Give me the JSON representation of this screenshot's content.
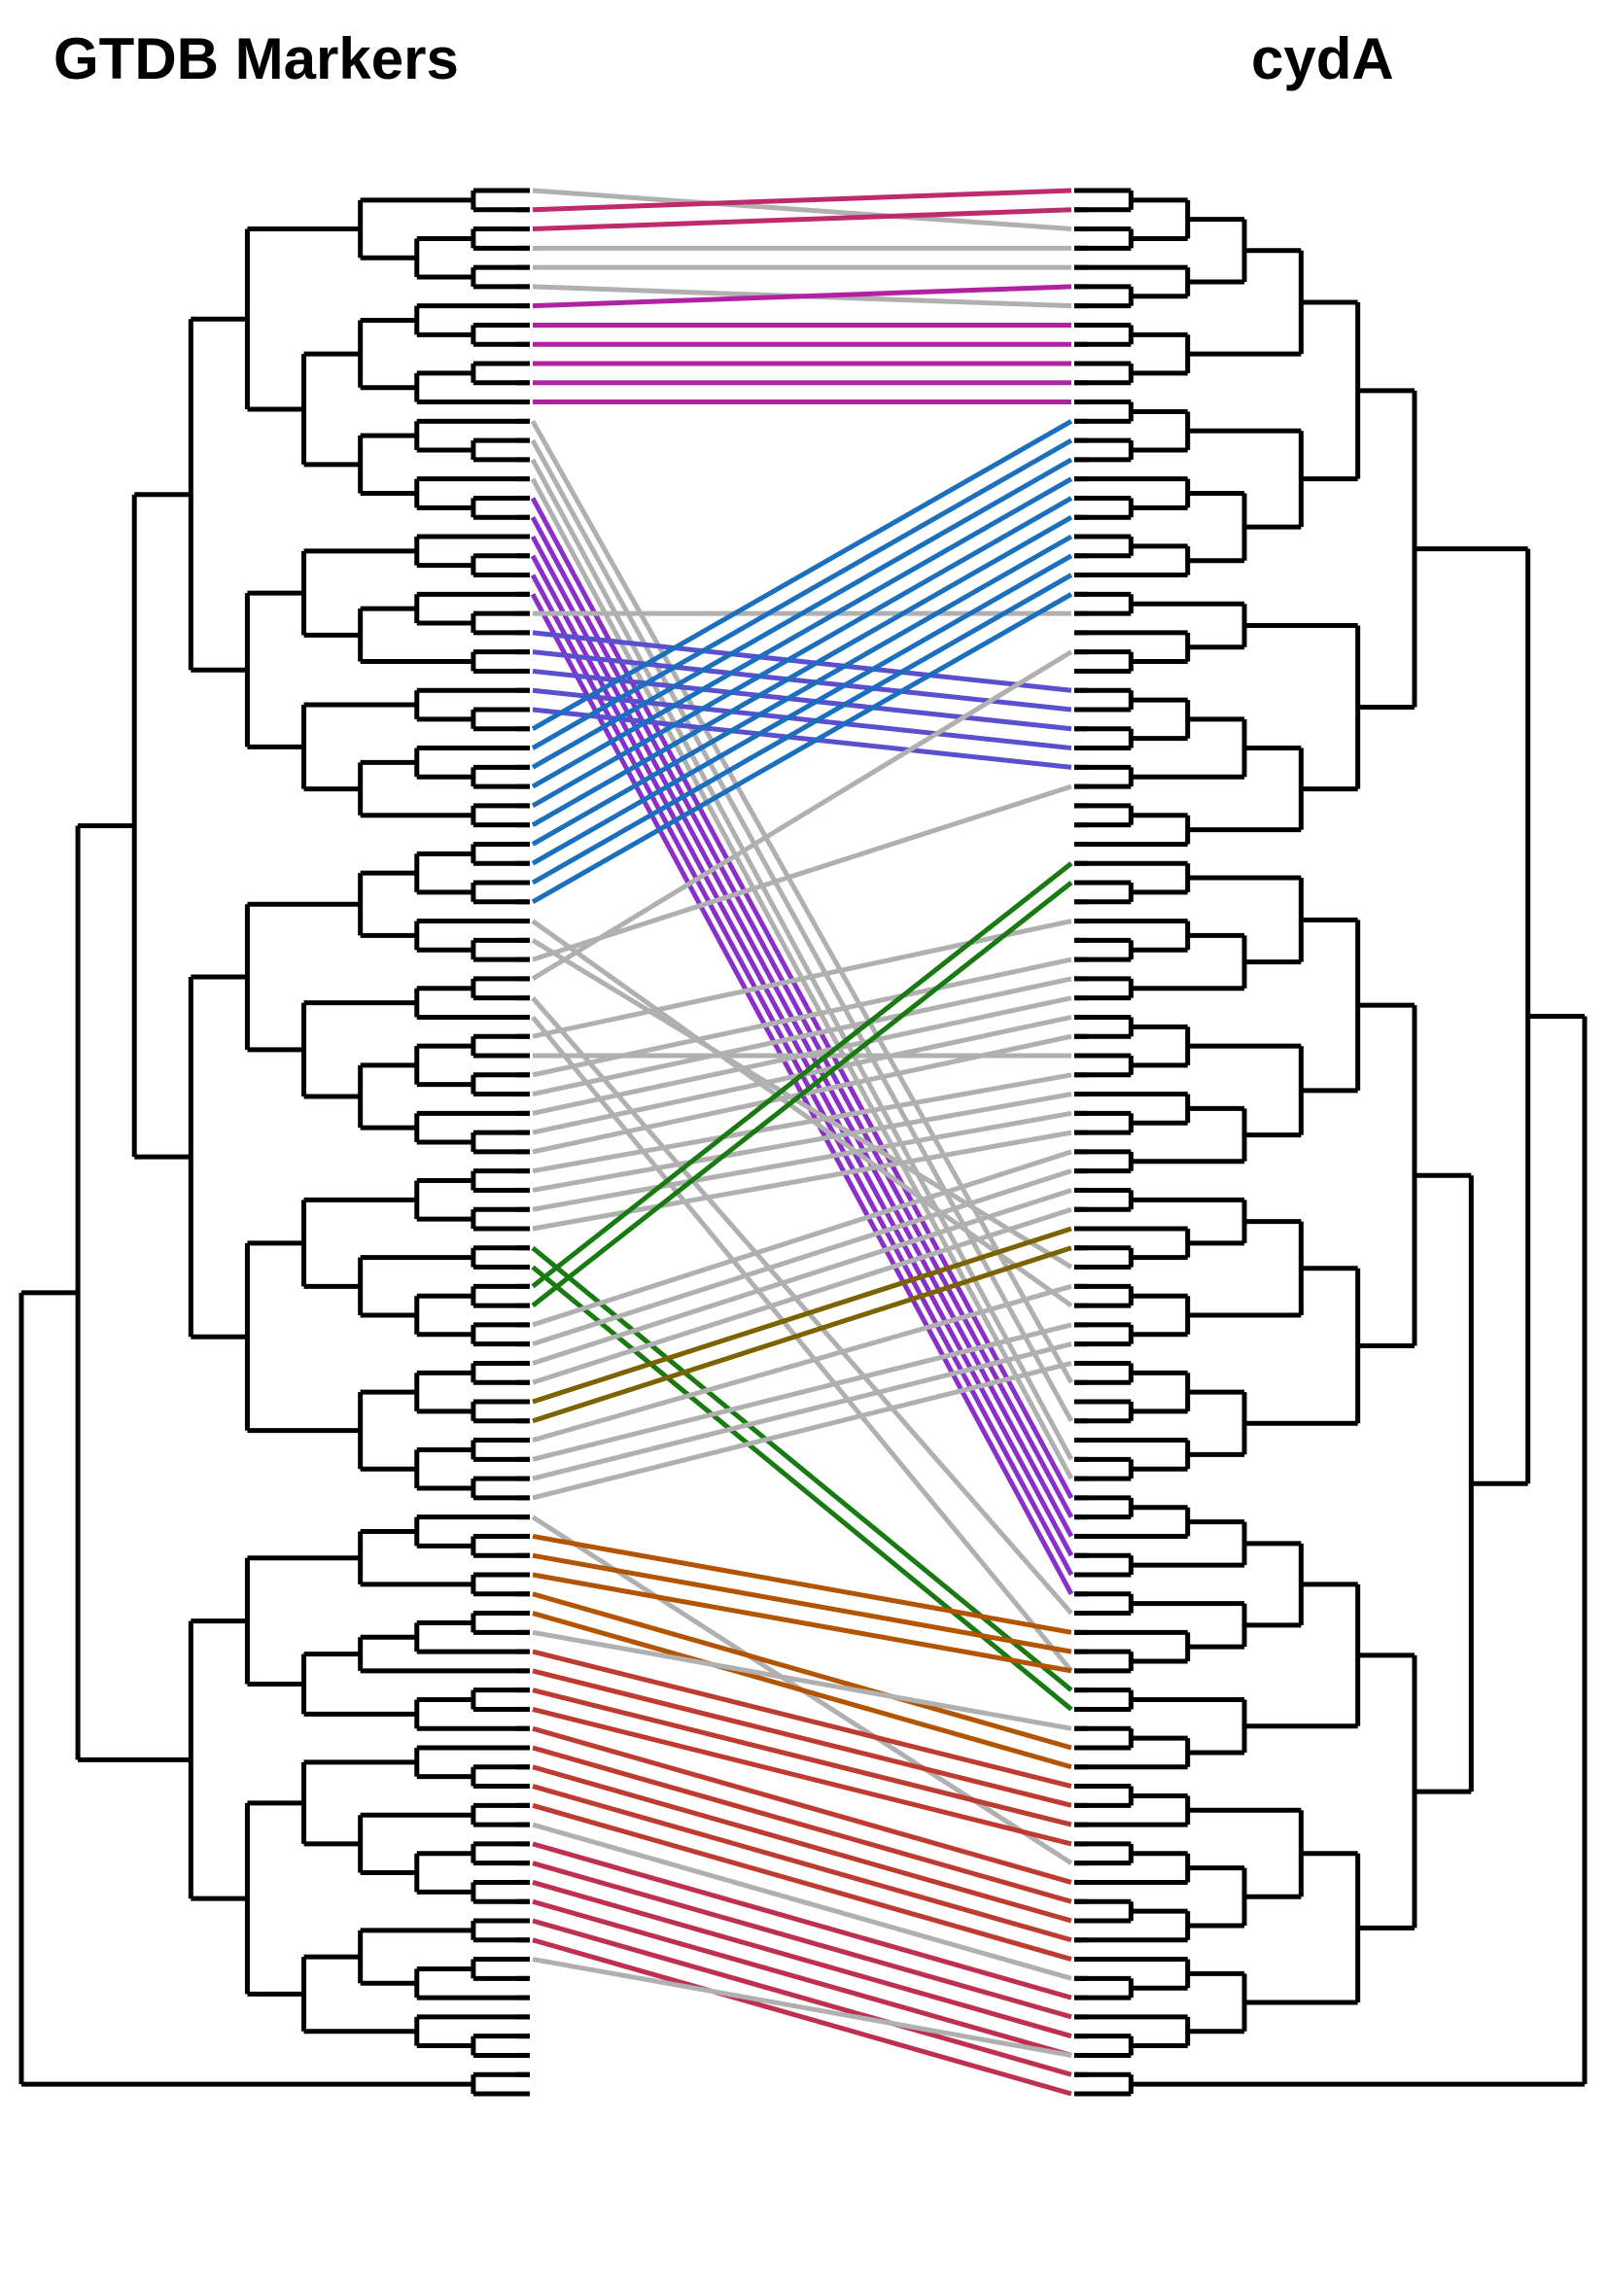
{
  "titles": {
    "left": "GTDB Markers",
    "right": "cydA"
  },
  "colors": {
    "tree": "#000000",
    "unmatched": "#b0b0b0",
    "groups": [
      "#bf2a6e",
      "#b0229f",
      "#8b2fc9",
      "#5a4fcf",
      "#1a6fbf",
      "#1a7a12",
      "#7a6300",
      "#b35400",
      "#bf3a30",
      "#bf3050"
    ]
  },
  "tip_count": 100,
  "connections": [
    [
      0,
      2,
      "#b0b0b0"
    ],
    [
      1,
      0,
      "#bf2a6e"
    ],
    [
      2,
      1,
      "#bf2a6e"
    ],
    [
      3,
      3,
      "#b0b0b0"
    ],
    [
      4,
      4,
      "#b0b0b0"
    ],
    [
      5,
      6,
      "#b0b0b0"
    ],
    [
      6,
      5,
      "#b0229f"
    ],
    [
      7,
      7,
      "#b0229f"
    ],
    [
      8,
      8,
      "#b0229f"
    ],
    [
      9,
      9,
      "#b0229f"
    ],
    [
      10,
      10,
      "#b0229f"
    ],
    [
      11,
      11,
      "#b0229f"
    ],
    [
      12,
      62,
      "#b0b0b0"
    ],
    [
      13,
      64,
      "#b0b0b0"
    ],
    [
      14,
      66,
      "#b0b0b0"
    ],
    [
      15,
      67,
      "#b0b0b0"
    ],
    [
      16,
      68,
      "#8b2fc9"
    ],
    [
      17,
      69,
      "#8b2fc9"
    ],
    [
      18,
      70,
      "#8b2fc9"
    ],
    [
      19,
      71,
      "#8b2fc9"
    ],
    [
      20,
      72,
      "#8b2fc9"
    ],
    [
      21,
      73,
      "#8b2fc9"
    ],
    [
      22,
      22,
      "#b0b0b0"
    ],
    [
      23,
      26,
      "#5a4fcf"
    ],
    [
      24,
      27,
      "#5a4fcf"
    ],
    [
      25,
      28,
      "#5a4fcf"
    ],
    [
      26,
      29,
      "#5a4fcf"
    ],
    [
      27,
      30,
      "#5a4fcf"
    ],
    [
      28,
      12,
      "#1a6fbf"
    ],
    [
      29,
      13,
      "#1a6fbf"
    ],
    [
      30,
      14,
      "#1a6fbf"
    ],
    [
      31,
      15,
      "#1a6fbf"
    ],
    [
      32,
      16,
      "#1a6fbf"
    ],
    [
      33,
      17,
      "#1a6fbf"
    ],
    [
      34,
      18,
      "#1a6fbf"
    ],
    [
      35,
      19,
      "#1a6fbf"
    ],
    [
      36,
      20,
      "#1a6fbf"
    ],
    [
      37,
      21,
      "#1a6fbf"
    ],
    [
      38,
      58,
      "#b0b0b0"
    ],
    [
      39,
      56,
      "#b0b0b0"
    ],
    [
      40,
      31,
      "#b0b0b0"
    ],
    [
      41,
      24,
      "#b0b0b0"
    ],
    [
      42,
      74,
      "#b0b0b0"
    ],
    [
      43,
      77,
      "#b0b0b0"
    ],
    [
      44,
      38,
      "#b0b0b0"
    ],
    [
      45,
      45,
      "#b0b0b0"
    ],
    [
      46,
      40,
      "#b0b0b0"
    ],
    [
      47,
      41,
      "#b0b0b0"
    ],
    [
      48,
      42,
      "#b0b0b0"
    ],
    [
      49,
      43,
      "#b0b0b0"
    ],
    [
      50,
      44,
      "#b0b0b0"
    ],
    [
      51,
      46,
      "#b0b0b0"
    ],
    [
      52,
      47,
      "#b0b0b0"
    ],
    [
      53,
      48,
      "#b0b0b0"
    ],
    [
      54,
      49,
      "#b0b0b0"
    ],
    [
      55,
      78,
      "#1a7a12"
    ],
    [
      56,
      79,
      "#1a7a12"
    ],
    [
      57,
      35,
      "#1a7a12"
    ],
    [
      58,
      36,
      "#1a7a12"
    ],
    [
      59,
      50,
      "#b0b0b0"
    ],
    [
      60,
      51,
      "#b0b0b0"
    ],
    [
      61,
      52,
      "#b0b0b0"
    ],
    [
      62,
      53,
      "#b0b0b0"
    ],
    [
      63,
      54,
      "#7a6300"
    ],
    [
      64,
      55,
      "#7a6300"
    ],
    [
      65,
      57,
      "#b0b0b0"
    ],
    [
      66,
      59,
      "#b0b0b0"
    ],
    [
      67,
      60,
      "#b0b0b0"
    ],
    [
      68,
      61,
      "#b0b0b0"
    ],
    [
      69,
      87,
      "#b0b0b0"
    ],
    [
      70,
      75,
      "#b35400"
    ],
    [
      71,
      76,
      "#b35400"
    ],
    [
      72,
      77,
      "#b35400"
    ],
    [
      73,
      81,
      "#b35400"
    ],
    [
      74,
      82,
      "#b35400"
    ],
    [
      75,
      80,
      "#b0b0b0"
    ],
    [
      76,
      83,
      "#bf3a30"
    ],
    [
      77,
      84,
      "#bf3a30"
    ],
    [
      78,
      85,
      "#bf3a30"
    ],
    [
      79,
      86,
      "#bf3a30"
    ],
    [
      80,
      88,
      "#bf3a30"
    ],
    [
      81,
      89,
      "#bf3a30"
    ],
    [
      82,
      90,
      "#bf3a30"
    ],
    [
      83,
      91,
      "#bf3a30"
    ],
    [
      84,
      92,
      "#bf3a30"
    ],
    [
      85,
      93,
      "#b0b0b0"
    ],
    [
      86,
      94,
      "#bf3050"
    ],
    [
      87,
      95,
      "#bf3050"
    ],
    [
      88,
      96,
      "#bf3050"
    ],
    [
      89,
      97,
      "#bf3050"
    ],
    [
      90,
      98,
      "#bf3050"
    ],
    [
      91,
      99,
      "#bf3050"
    ],
    [
      92,
      97,
      "#b0b0b0"
    ]
  ]
}
